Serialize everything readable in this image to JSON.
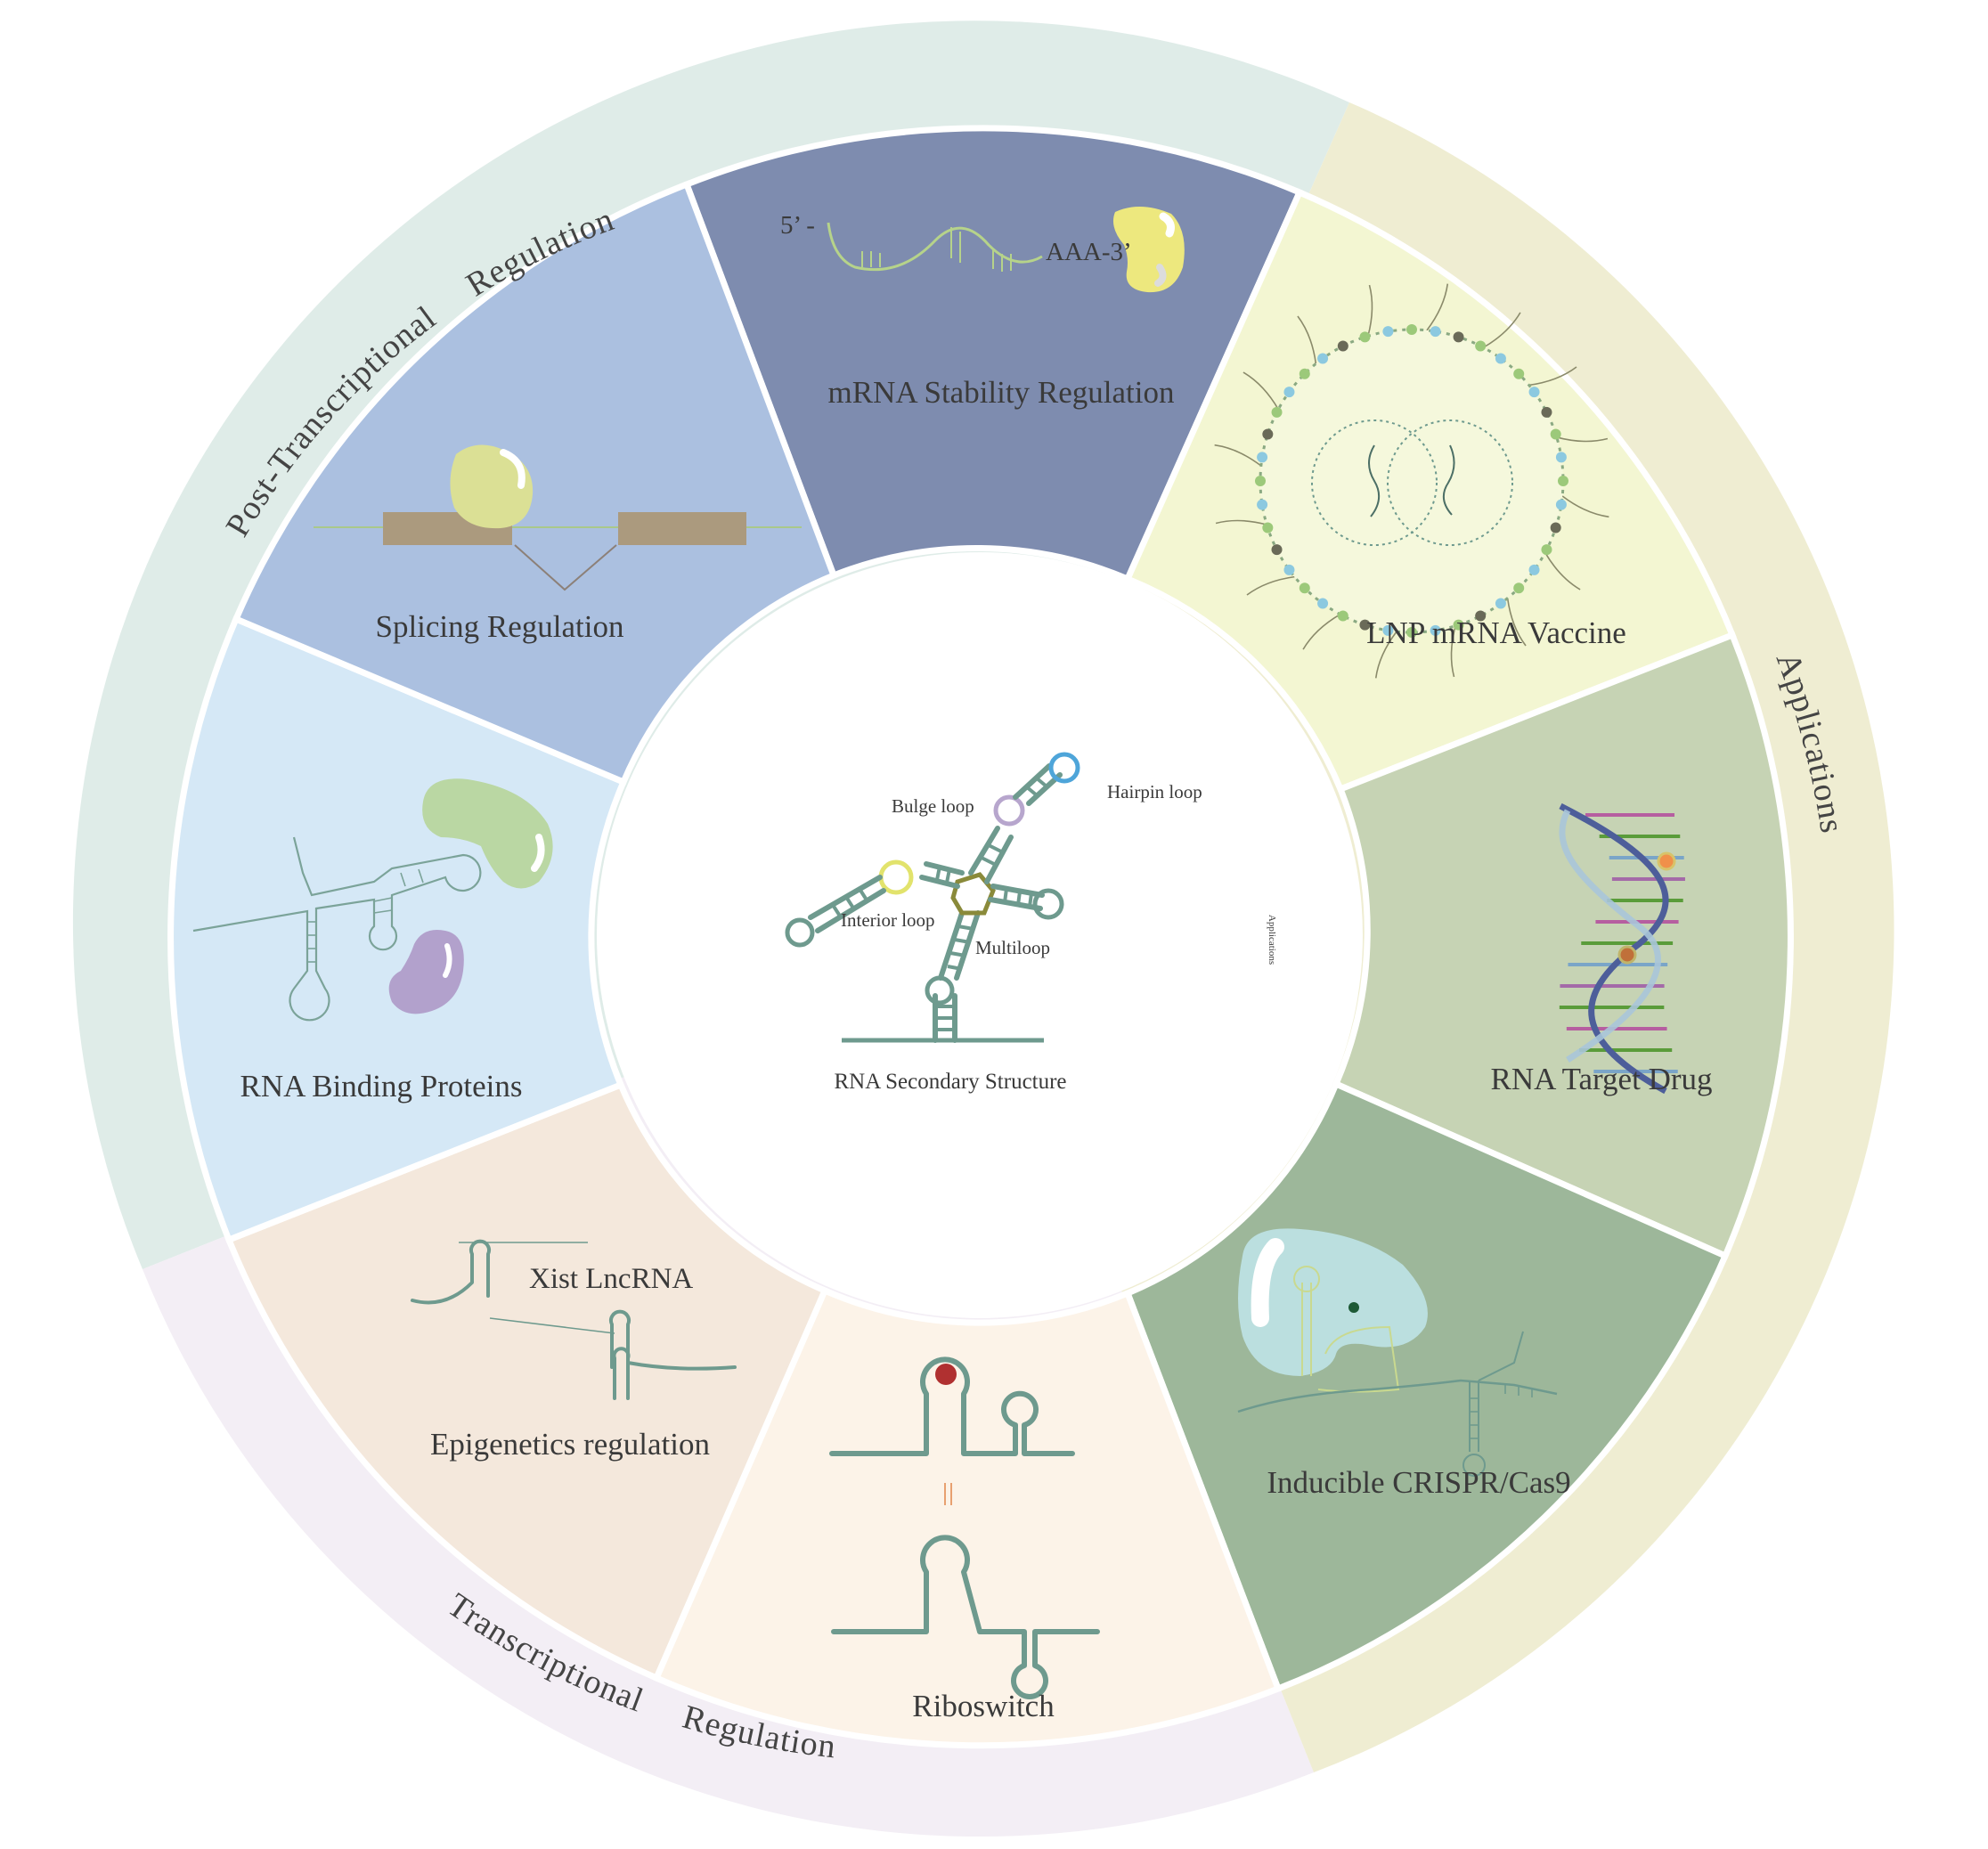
{
  "center": {
    "title": "RNA Secondary Structure",
    "loops": {
      "hairpin": "Hairpin loop",
      "bulge": "Bulge loop",
      "interior": "Interior loop",
      "multi": "Multiloop"
    },
    "tiny_text": "Applications"
  },
  "ring_labels": {
    "post_1": "Post-Transcriptional",
    "post_2": "Regulation",
    "trans_1": "Transcriptional",
    "trans_2": "Regulation",
    "applications": "Applications"
  },
  "segments": {
    "mrna_stability": {
      "label": "mRNA Stability Regulation",
      "five_prime": "5’ -",
      "three_prime": "AAA-3’"
    },
    "lnp": {
      "label": "LNP mRNA Vaccine"
    },
    "rna_target_drug": {
      "label": "RNA Target  Drug"
    },
    "crispr": {
      "label": "Inducible CRISPR/Cas9"
    },
    "riboswitch": {
      "label": "Riboswitch"
    },
    "epigenetics": {
      "label": "Epigenetics regulation",
      "sublabel": "Xist LncRNA"
    },
    "rbp": {
      "label": "RNA Binding Proteins"
    },
    "splicing": {
      "label": "Splicing Regulation"
    }
  },
  "colors": {
    "post_ring": "#dfece8",
    "trans_ring": "#f3eef5",
    "applications_ring": "#efedd2",
    "mrna_stability": "#7e8caf",
    "lnp": "#f3f6d2",
    "rna_target_drug": "#c6d3b4",
    "crispr": "#9db79a",
    "riboswitch": "#fcf3e8",
    "epigenetics": "#f4e8dc",
    "rbp": "#d5e8f6",
    "splicing": "#abc0e0",
    "rna_stroke": "#6e9a8e"
  }
}
